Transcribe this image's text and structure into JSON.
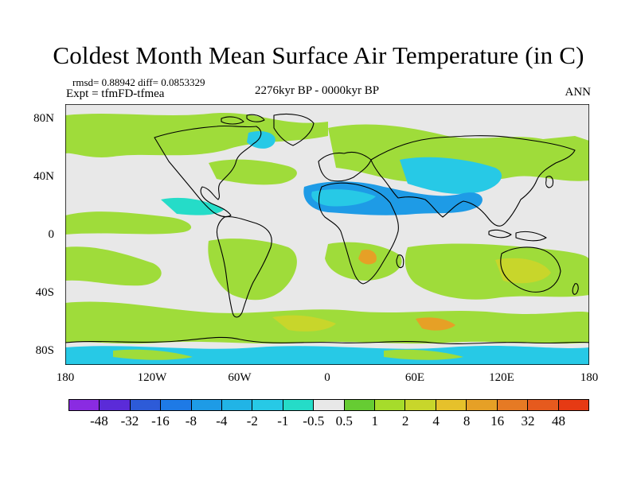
{
  "title": "Coldest Month Mean Surface Air Temperature (in C)",
  "stats": "rmsd= 0.88942 diff= 0.0853329",
  "experiment": "Expt = tfmFD-tfmea",
  "period": "2276kyr BP - 0000kyr BP",
  "season": "ANN",
  "y_axis_labels": [
    "80N",
    "40N",
    "0",
    "40S",
    "80S"
  ],
  "x_axis_labels": [
    "180",
    "120W",
    "60W",
    "0",
    "60E",
    "120E",
    "180"
  ],
  "colorbar": {
    "colors": [
      "#8a2be2",
      "#5b2bd8",
      "#2d5bd8",
      "#1e7ae6",
      "#1e9be6",
      "#21b4e6",
      "#27c9e6",
      "#25dcc8",
      "#e8e8e8",
      "#66cc33",
      "#a6dc2b",
      "#c8d62b",
      "#e6c12b",
      "#e6a026",
      "#e67a24",
      "#e65a1e",
      "#e63a14"
    ],
    "labels": [
      "-48",
      "-32",
      "-16",
      "-8",
      "-4",
      "-2",
      "-1",
      "-0.5",
      "0.5",
      "1",
      "2",
      "4",
      "8",
      "16",
      "32",
      "48"
    ]
  },
  "map_colors": {
    "background": "#e8e8e8",
    "green": "#9fdc3a",
    "dark_green": "#66cc33",
    "yellow": "#c8d62b",
    "orange": "#e6a026",
    "cyan": "#27c9e6",
    "light_cyan": "#25dcc8",
    "blue": "#1e9be6",
    "coast": "#000000"
  }
}
